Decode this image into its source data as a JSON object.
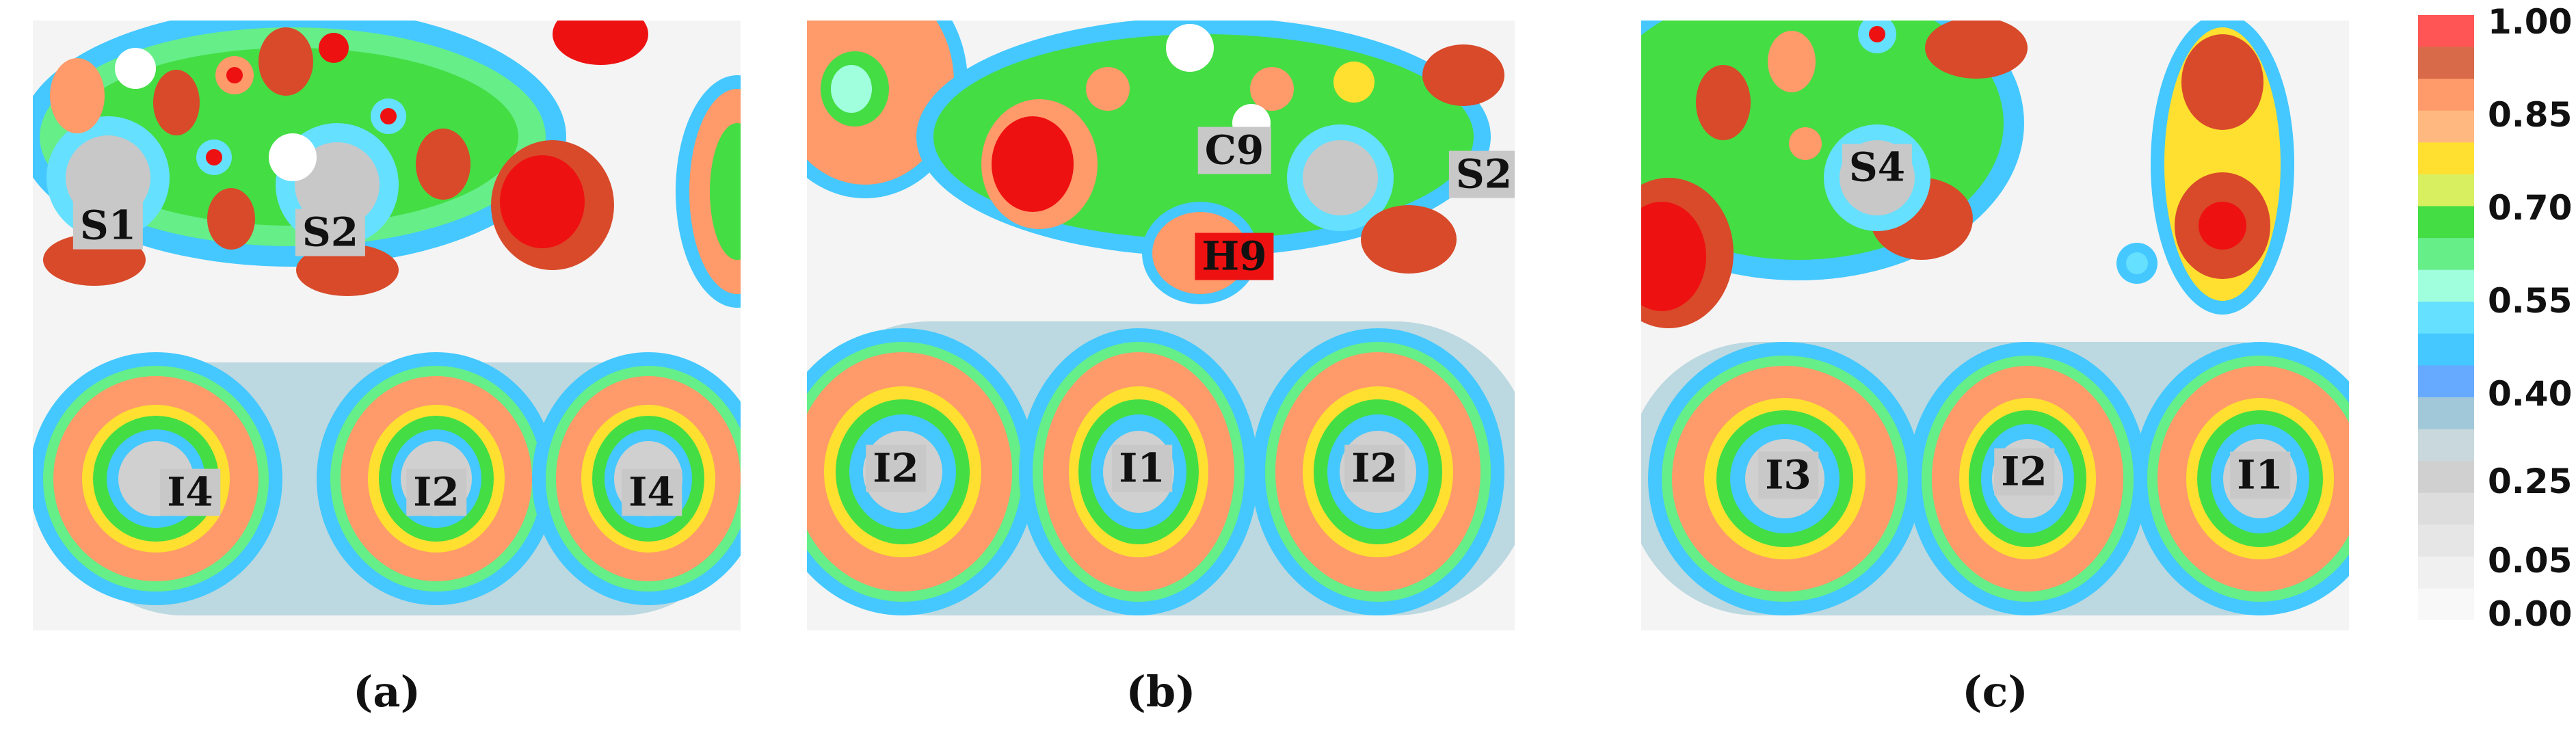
{
  "panels": [
    {
      "caption": "(a)",
      "labels": [
        {
          "text": "S1",
          "bg": "gray"
        },
        {
          "text": "S2",
          "bg": "gray"
        },
        {
          "text": "I4",
          "bg": "gray"
        },
        {
          "text": "I2",
          "bg": "gray"
        },
        {
          "text": "I4",
          "bg": "gray"
        }
      ]
    },
    {
      "caption": "(b)",
      "labels": [
        {
          "text": "C9",
          "bg": "gray"
        },
        {
          "text": "S2",
          "bg": "gray"
        },
        {
          "text": "H9",
          "bg": "red"
        },
        {
          "text": "I2",
          "bg": "gray"
        },
        {
          "text": "I1",
          "bg": "gray"
        },
        {
          "text": "I2",
          "bg": "gray"
        }
      ]
    },
    {
      "caption": "(c)",
      "labels": [
        {
          "text": "S4",
          "bg": "gray"
        },
        {
          "text": "I3",
          "bg": "gray"
        },
        {
          "text": "I2",
          "bg": "gray"
        },
        {
          "text": "I1",
          "bg": "gray"
        }
      ]
    }
  ],
  "colorbar": {
    "tick_labels": [
      "1.00",
      "0.85",
      "0.70",
      "0.55",
      "0.40",
      "0.25",
      "0.05",
      "0.00"
    ],
    "colors": [
      "#ff5555",
      "#d86a4a",
      "#ff9a6a",
      "#ffb880",
      "#ffe030",
      "#d8f060",
      "#44dd44",
      "#66ee88",
      "#a0ffdd",
      "#66e0ff",
      "#44c8ff",
      "#66aaff",
      "#a0c8d8",
      "#c8d8dc",
      "#d0d0d0",
      "#dddddd",
      "#e6e6e6",
      "#f0f0f0",
      "#f8f8f8"
    ]
  }
}
